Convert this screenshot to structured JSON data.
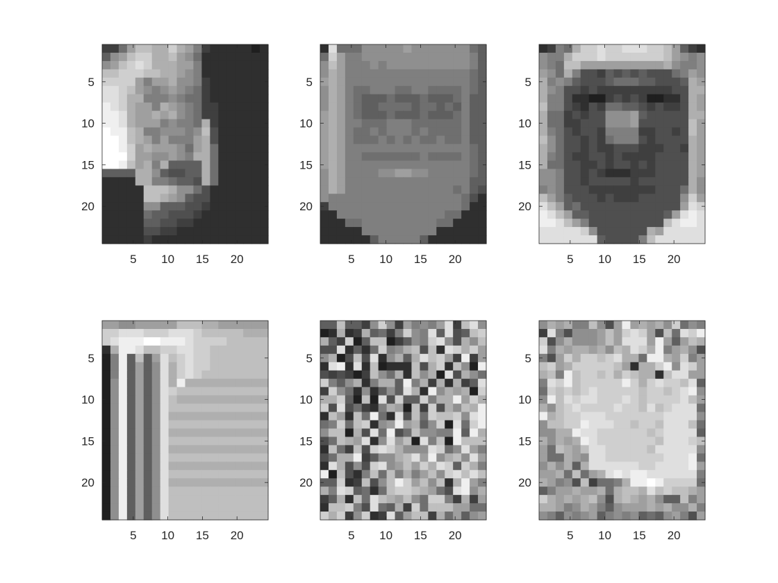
{
  "chart_data": [
    {
      "type": "heatmap",
      "subject": "face",
      "rows": 24,
      "cols": 20,
      "colormap": "gray",
      "x_ticks": [
        "5",
        "10",
        "15",
        "20"
      ],
      "y_ticks": [
        "5",
        "10",
        "15",
        "20"
      ],
      "values": [
        "3369BBAACA9732222212",
        "589BCCAAB98622222222",
        "89BCDCAAA99722222222",
        "BBCCCBBAA98722222222",
        "CCCC9799A88732222222",
        "DDCB9878987632222222",
        "DDCAA777876632222222",
        "EDCA997A987633222222",
        "EEDA99A9A87633222222",
        "EEDA99978776A3222222",
        "FEEBA7788878B4222222",
        "FFEBA9797779A4222222",
        "FFEC9A999869A6222222",
        "FFFC9988987AA6222222",
        "FFEB9A7A5555A6222222",
        "5555AA854455A6222222",
        "2222AA776554A6222222",
        "22222BBBA88642222222",
        "22222BBA985442222222",
        "22222885554432222222",
        "22222655444322222222",
        "22222554433222222222",
        "22222443322222222222",
        "22222322222222222222"
      ]
    },
    {
      "type": "heatmap",
      "subject": "face",
      "rows": 24,
      "cols": 20,
      "colormap": "gray",
      "x_ticks": [
        "5",
        "10",
        "15",
        "20"
      ],
      "y_ticks": [
        "5",
        "10",
        "15",
        "20"
      ],
      "values": [
        "2D666888889888888865",
        "6C977888888888888875",
        "8B977787888888888875",
        "8A977777777777777765",
        "9A977777777777777765",
        "8A976677766776666765",
        "8A976555655565556755",
        "8A976556666566565755",
        "9A976555655565556755",
        "9A977666777666666755",
        "9A976676777676666755",
        "9A976667676766766755",
        "9A977777777777777765",
        "9A977666666676666765",
        "9A977777777777777765",
        "8A977778899887777765",
        "8A977777777777777755",
        "8A977777777777776754",
        "87777777777777777642",
        "37777777777777777622",
        "22777777777777766222",
        "22266777777777662222",
        "22222777777777222222",
        "22222257777752222222"
      ]
    },
    {
      "type": "heatmap",
      "subject": "face",
      "rows": 24,
      "cols": 20,
      "colormap": "gray",
      "x_ticks": [
        "5",
        "10",
        "15",
        "20"
      ],
      "y_ticks": [
        "5",
        "10",
        "15",
        "20"
      ],
      "values": [
        "2376ACCDCCDDDCCB9532",
        "877ACCCDCCCCCCCB9878",
        "876BB9999999999A8778",
        "986A7443545454446798",
        "A78754445666554445A9",
        "A87443433333333344AA",
        "A77422113434311224A9",
        "B77432436655434334A9",
        "A66343448889544444AA",
        "A66334448889444444B9",
        "A76434437777334434B9",
        "B86443436777434444A9",
        "A86443433444333443A9",
        "A76433443433334444A9",
        "A66443343443434444A9",
        "887443432223334444A9",
        "887443444443444444A8",
        "787444333333334446A8",
        "B97544434333444448C9",
        "DB9564444444444449DC",
        "EDB95544444444459DED",
        "EEDB97444444444BDEED",
        "DDDDDC8444444A9DDDDD",
        "DDDDDDD544447BDDDDDD"
      ]
    },
    {
      "type": "heatmap",
      "subject": "texture",
      "rows": 24,
      "cols": 20,
      "colormap": "gray",
      "x_ticks": [
        "5",
        "10",
        "15",
        "20"
      ],
      "y_ticks": [
        "5",
        "10",
        "15",
        "20"
      ],
      "values": [
        "998899999BBBAA999999",
        "CCDDDCCCDDDCBBBBBAAA",
        "CDEEEFFEEEDCCCCBBBBB",
        "2AEEDBBCCDDCCBBBBBBB",
        "17E5B59DBCDCCBBBBBBB",
        "17E5958DACDCCBBBBBBB",
        "17E5958DACDCBBBBBBBB",
        "18E5958DAEAAAAAAAAAA",
        "18E5958DCBBBBBBBBBBB",
        "18E5958DBAAAAAAAAAAA",
        "18E5958DBBBBBBBBBBBB",
        "18E5958DAAAAAAAAAAAA",
        "18E5958DBBBBBBBBBBBB",
        "18E5958DAAAAAAAAAAAA",
        "18E5958DBBBBBBBBBBBB",
        "18E5958DAAAAAAAAAAAA",
        "18E5958DBBBBBBBBBBBB",
        "18E5958DAAAAAAAAAAAA",
        "18E5958DBBBBBBBBBBBB",
        "18E5958DAAAAAAAAAAAA",
        "18E5958DBBBBBBBBBBBB",
        "18E5958DBBBBBBBBBBBB",
        "18E5958DBBBBBBBBBBBB",
        "18E5958DBBBBBBBBBBBB"
      ]
    },
    {
      "type": "heatmap",
      "subject": "noise",
      "rows": 24,
      "cols": 20,
      "colormap": "gray",
      "x_ticks": [
        "5",
        "10",
        "15",
        "20"
      ],
      "y_ticks": [
        "5",
        "10",
        "15",
        "20"
      ],
      "values": [
        "55B5538C8397879D3BD8",
        "12A23A5637C87D5D45BC",
        "A53C15BB13587CD84A8B",
        "44D2526C78AB4B2DCAC9",
        "8A14B4D28A5ADBC93E39",
        "2DE2D2B1222B4AC2B81E",
        "434313B86A2B8A1D4A86",
        "C758A27AA5E7A3A2A35D",
        "3C86282585DA2E8A9A1C",
        "AAC51B1D4C55C7AAE9CA",
        "C4D46327A91B3C4A8BAE",
        "2B92B6E62D4B6CBBC8DE",
        "67C6BC289E9A58C1D6CE",
        "8BB1A4D6E46B8877E5EA",
        "46BA9D28D9B1D7B1EBBB",
        "2B63B4CDCA888DC68D97",
        "46AAE3588ABD9E8AB8D9",
        "2DA484CD89B9CADC5CA7",
        "E1B427B6B7A79B8CDBDB",
        "55C23B48BEC9B8B2AE97",
        "A7DC5626BCCBA964DE8A",
        "35A2B6DBA9B86CC73A39",
        "2BBC74D65A3C6BBB9966",
        "CAC38C23D59BB3A69589"
      ]
    },
    {
      "type": "heatmap",
      "subject": "pattern",
      "rows": 24,
      "cols": 20,
      "colormap": "gray",
      "x_ticks": [
        "5",
        "10",
        "15",
        "20"
      ],
      "y_ticks": [
        "5",
        "10",
        "15",
        "20"
      ],
      "values": [
        "8A9A77B849E9A9A8C687",
        "3D748889B9CDC94B6DCE",
        "C48A8889B9DDD9E959BA",
        "D7A9AA9A8BADCAE79A84",
        "749CACCBCDAA6EEA9C79",
        "BC9ACCCCCB92AACE8DC9",
        "AB7EBCCBCACBAA2BDD99",
        "7DCEBCCCCCECACDCCBD5",
        "6CBCBCDCCCCCBCCBCDE8",
        "8EBDCDDCCCDCBCCCCDB9",
        "A8BCDCCCCDCCBDBCDDD6",
        "EABCCDDDCCCCCCCDDDD8",
        "8BBCCEDDDCCBCCBDDDB6",
        "88AAEDDCCCCCCBCDDDD5",
        "A8A9AEDCCCCCCCBDDDCB",
        "96BA9BDDCCCCCBDDDDD8",
        "966A98DDCCCCCCCDDDE6",
        "8A8A5ADDDDDDCCDDDDE9",
        "99A6B69ADEDEEDDDDDD7",
        "A9784B3667AEEFECCCC6",
        "5799A99A6ABBADBCBBA9",
        "CA9A9AB84ABA9A855B79",
        "AA978A9758999A9A88A7",
        "87587895787856589749"
      ]
    }
  ]
}
